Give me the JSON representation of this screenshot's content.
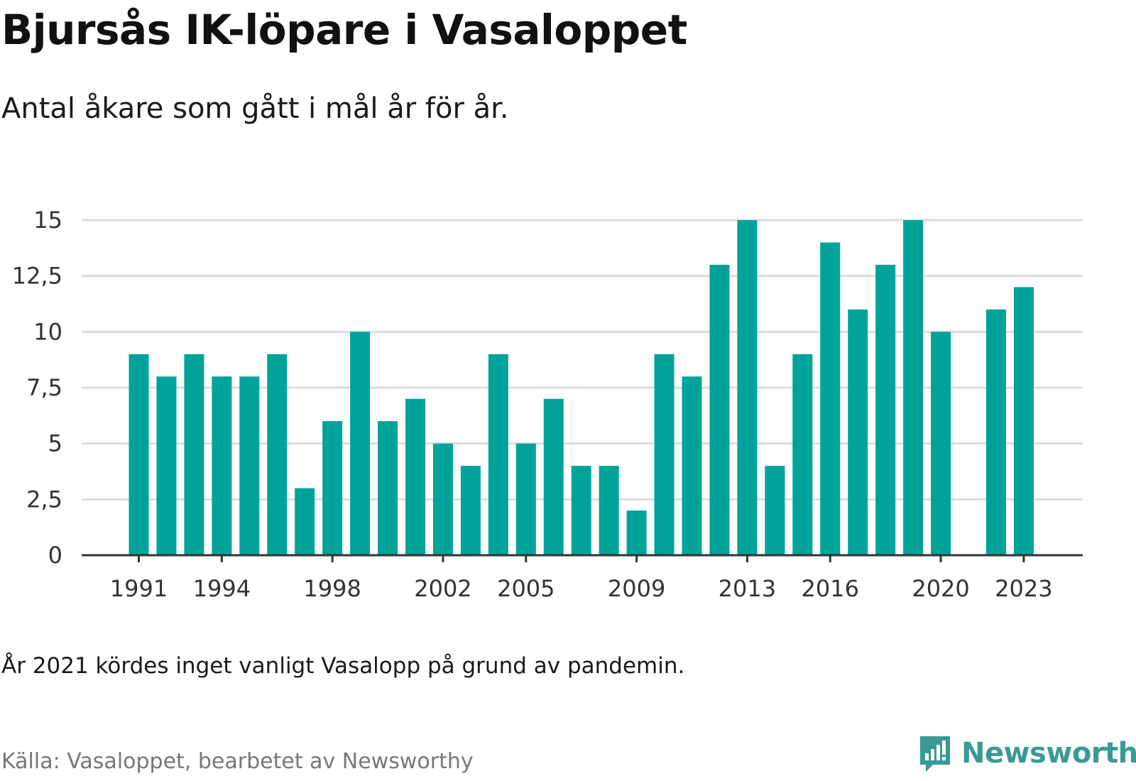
{
  "title": "Bjursås IK-löpare i Vasaloppet",
  "subtitle": "Antal åkare som gått i mål år för år.",
  "note": "År 2021 kördes inget vanligt Vasalopp på grund av pandemin.",
  "source": "Källa: Vasaloppet, bearbetet av Newsworthy",
  "brand": "Newsworthy",
  "colors": {
    "bar": "#00a39a",
    "grid": "#dddddd",
    "axis": "#333333",
    "brand": "#3a9a93"
  },
  "chart_data": {
    "type": "bar",
    "categories": [
      "1991",
      "1992",
      "1993",
      "1994",
      "1995",
      "1996",
      "1997",
      "1998",
      "1999",
      "2000",
      "2001",
      "2002",
      "2003",
      "2004",
      "2005",
      "2006",
      "2007",
      "2008",
      "2009",
      "2010",
      "2011",
      "2012",
      "2013",
      "2014",
      "2015",
      "2016",
      "2017",
      "2018",
      "2019",
      "2020",
      "2021",
      "2022",
      "2023"
    ],
    "values": [
      9,
      8,
      9,
      8,
      8,
      9,
      3,
      6,
      10,
      6,
      7,
      5,
      4,
      9,
      5,
      7,
      4,
      4,
      2,
      9,
      8,
      13,
      15,
      4,
      9,
      14,
      11,
      13,
      15,
      10,
      null,
      11,
      12
    ],
    "x_tick_labels": [
      "1991",
      "1994",
      "1998",
      "2002",
      "2005",
      "2009",
      "2013",
      "2016",
      "2020",
      "2023"
    ],
    "y_ticks": [
      0,
      2.5,
      5,
      7.5,
      10,
      12.5,
      15
    ],
    "y_tick_labels": [
      "0",
      "2,5",
      "5",
      "7,5",
      "10",
      "12,5",
      "15"
    ],
    "ylim": [
      0,
      15
    ],
    "grid": true
  }
}
